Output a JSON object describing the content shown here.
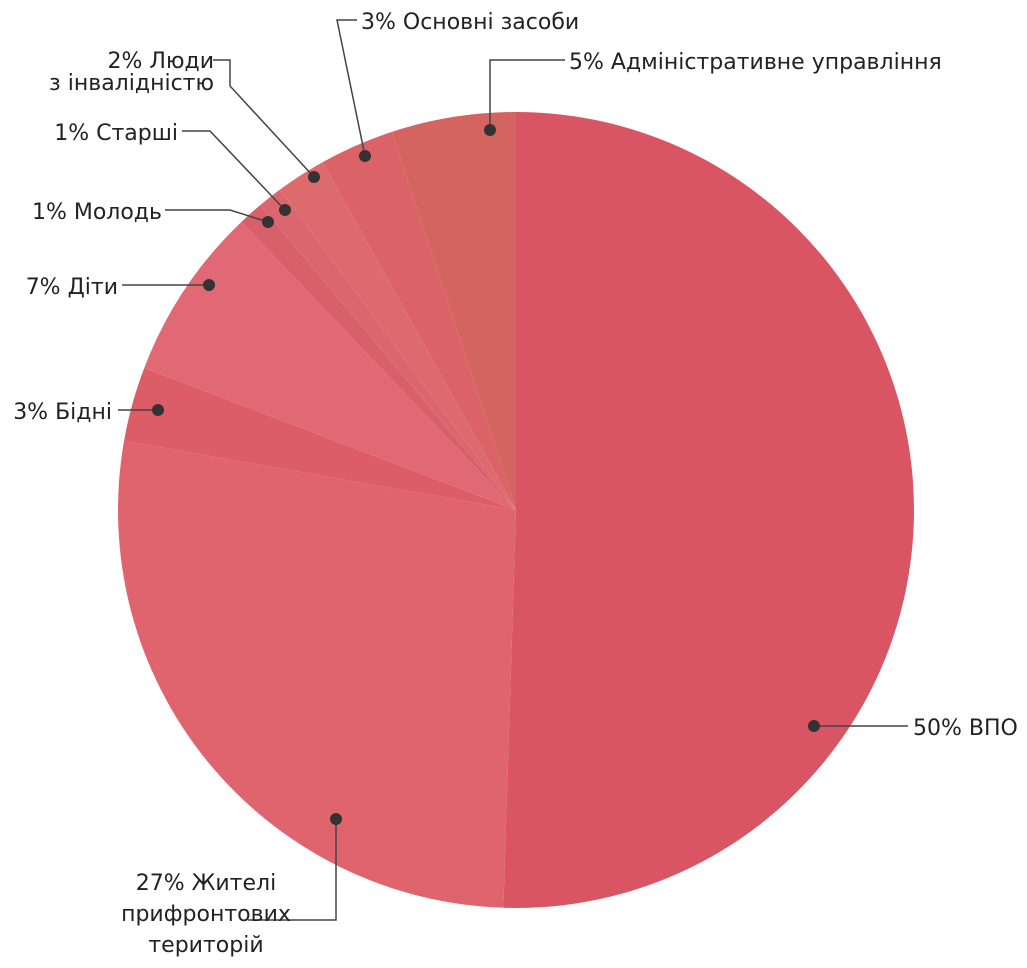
{
  "chart_data": {
    "type": "pie",
    "title": "",
    "slices": [
      {
        "label": "ВПО",
        "value": 50,
        "color": "#D95563",
        "text": [
          "50% ВПО"
        ]
      },
      {
        "label": "Жителі прифронтових територій",
        "value": 27,
        "color": "#E0646E",
        "text": [
          "27% Жителі",
          "прифронтових",
          "територій"
        ]
      },
      {
        "label": "Бідні",
        "value": 3,
        "color": "#DC5C67",
        "text": [
          "3% Бідні"
        ]
      },
      {
        "label": "Діти",
        "value": 7,
        "color": "#E16976",
        "text": [
          "7% Діти"
        ]
      },
      {
        "label": "Молодь",
        "value": 1,
        "color": "#D7606A",
        "text": [
          "1% Молодь"
        ]
      },
      {
        "label": "Старші",
        "value": 1,
        "color": "#DB6670",
        "text": [
          "1% Старші"
        ]
      },
      {
        "label": "Люди з інвалідністю",
        "value": 2,
        "color": "#DD6B6E",
        "text": [
          "2% Люди",
          "з інвалідністю"
        ]
      },
      {
        "label": "Основні засоби",
        "value": 3,
        "color": "#DB6368",
        "text": [
          "3% Основні засоби"
        ]
      },
      {
        "label": "Адміністративне управління",
        "value": 5,
        "color": "#D4645F",
        "text": [
          "5% Адміністративне управління"
        ]
      }
    ]
  }
}
